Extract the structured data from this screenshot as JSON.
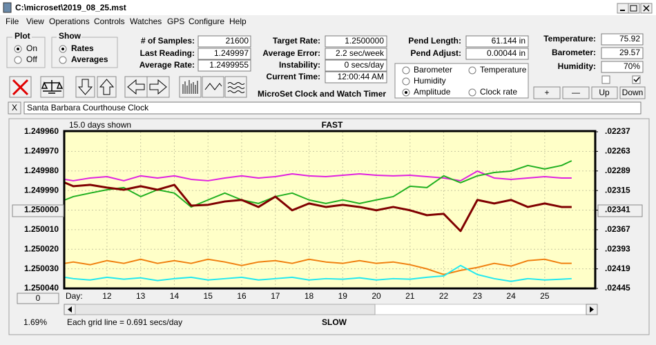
{
  "window": {
    "title": "C:\\microset\\2019_08_25.mst",
    "menu": [
      "File",
      "View",
      "Operations",
      "Controls",
      "Watches",
      "GPS",
      "Configure",
      "Help"
    ]
  },
  "plot_group": {
    "title": "Plot",
    "options": [
      "On",
      "Off"
    ]
  },
  "show_group": {
    "title": "Show",
    "options": [
      "Rates",
      "Averages"
    ]
  },
  "stats": [
    {
      "label": "# of Samples:",
      "value": "21600"
    },
    {
      "label": "Last Reading:",
      "value": "1.249997"
    },
    {
      "label": "Average Rate:",
      "value": "1.2499955"
    }
  ],
  "timing": [
    {
      "label": "Target Rate:",
      "value": "1.2500000"
    },
    {
      "label": "Average Error:",
      "value": "2.2 sec/week"
    },
    {
      "label": "Instability:",
      "value": "0 secs/day"
    },
    {
      "label": "Current Time:",
      "value": "12:00:44 AM"
    }
  ],
  "app_name": "MicroSet Clock and Watch Timer",
  "pendulum": [
    {
      "label": "Pend Length:",
      "value": "61.144 in"
    },
    {
      "label": "Pend Adjust:",
      "value": "0.00044 in"
    }
  ],
  "environment": [
    {
      "label": "Temperature:",
      "value": "75.92"
    },
    {
      "label": "Barometer:",
      "value": "29.57"
    },
    {
      "label": "Humidity:",
      "value": "70%"
    }
  ],
  "buttons": [
    "+",
    "—",
    "Up",
    "Down"
  ],
  "close_label": "X",
  "clock_name": "Santa Barbara Courthouse Clock",
  "chart_data": {
    "type": "line",
    "top_label": "FAST",
    "bottom_label": "SLOW",
    "span_label": "15.0 days shown",
    "grid_note": "Each grid line = 0.691 secs/day",
    "x_label": "Day:",
    "zoom_label": "1.69%",
    "offset_button": "0",
    "x": [
      10.75,
      11,
      11.5,
      12,
      12.5,
      13,
      13.5,
      14,
      14.5,
      15,
      15.5,
      16,
      16.5,
      17,
      17.5,
      18,
      18.5,
      19,
      19.5,
      20,
      20.5,
      21,
      21.5,
      22,
      22.5,
      23,
      23.5,
      24,
      24.5,
      25,
      25.5,
      25.8
    ],
    "xlim": [
      10.73,
      26.5
    ],
    "xticks": [
      12,
      13,
      14,
      15,
      16,
      17,
      18,
      19,
      20,
      21,
      22,
      23,
      24,
      25
    ],
    "ylim": [
      1.24996,
      1.25004
    ],
    "y_reversed": true,
    "yticks": [
      {
        "value": 1.24996,
        "label": "1.249960"
      },
      {
        "value": 1.24997,
        "label": "1.249970"
      },
      {
        "value": 1.24998,
        "label": "1.249980"
      },
      {
        "value": 1.24999,
        "label": "1.249990"
      },
      {
        "value": 1.25,
        "label": "1.250000"
      },
      {
        "value": 1.25001,
        "label": "1.250010"
      },
      {
        "value": 1.25002,
        "label": "1.250020"
      },
      {
        "value": 1.25003,
        "label": "1.250030"
      },
      {
        "value": 1.25004,
        "label": "1.250040"
      }
    ],
    "y2lim": [
      0.02237,
      0.02445
    ],
    "y2ticks": [
      {
        "value": 0.02237,
        "label": ".02237"
      },
      {
        "value": 0.02263,
        "label": ".02263"
      },
      {
        "value": 0.02289,
        "label": ".02289"
      },
      {
        "value": 0.02315,
        "label": ".02315"
      },
      {
        "value": 0.02341,
        "label": ".02341"
      },
      {
        "value": 0.02367,
        "label": ".02367"
      },
      {
        "value": 0.02393,
        "label": ".02393"
      },
      {
        "value": 0.02419,
        "label": ".02419"
      },
      {
        "value": 0.02445,
        "label": ".02445"
      }
    ],
    "grid": true,
    "series": [
      {
        "name": "Barometer",
        "color": "#f08010",
        "width": 2,
        "values": [
          1.2500272,
          1.2500265,
          1.2500279,
          1.2500258,
          1.2500272,
          1.2500251,
          1.2500272,
          1.2500258,
          1.2500272,
          1.2500251,
          1.2500265,
          1.2500283,
          1.2500265,
          1.2500258,
          1.2500272,
          1.2500251,
          1.2500265,
          1.2500272,
          1.2500258,
          1.2500272,
          1.2500265,
          1.2500279,
          1.25003,
          1.2500329,
          1.2500308,
          1.2500293,
          1.2500272,
          1.2500286,
          1.2500258,
          1.2500251,
          1.2500272,
          1.2500272
        ]
      },
      {
        "name": "Amplitude",
        "color": "#20e8f0",
        "width": 2,
        "values": [
          1.2500343,
          1.250035,
          1.2500357,
          1.2500343,
          1.2500353,
          1.2500346,
          1.250036,
          1.250035,
          1.2500343,
          1.2500357,
          1.250035,
          1.2500343,
          1.2500357,
          1.250035,
          1.2500343,
          1.2500357,
          1.250035,
          1.2500353,
          1.2500346,
          1.2500357,
          1.250035,
          1.2500353,
          1.2500343,
          1.2500336,
          1.2500283,
          1.2500329,
          1.250035,
          1.2500364,
          1.250035,
          1.2500357,
          1.2500353,
          1.250035
        ]
      },
      {
        "name": "Humidity",
        "color": "#e020e0",
        "width": 2,
        "values": [
          1.2499843,
          1.249985,
          1.2499836,
          1.2499829,
          1.249985,
          1.2499825,
          1.2499836,
          1.2499825,
          1.2499843,
          1.249985,
          1.2499836,
          1.2499825,
          1.2499836,
          1.2499829,
          1.2499815,
          1.2499825,
          1.2499829,
          1.2499822,
          1.2499815,
          1.2499822,
          1.2499825,
          1.2499822,
          1.2499829,
          1.2499836,
          1.249985,
          1.2499801,
          1.2499836,
          1.2499843,
          1.2499836,
          1.2499829,
          1.2499836,
          1.2499836
        ]
      },
      {
        "name": "Temperature",
        "color": "#20b020",
        "width": 2,
        "values": [
          1.2499948,
          1.2499931,
          1.2499913,
          1.2499896,
          1.2499885,
          1.2499931,
          1.2499896,
          1.2499913,
          1.2499984,
          1.2499948,
          1.2499913,
          1.2499948,
          1.2499966,
          1.2499931,
          1.2499913,
          1.2499948,
          1.2499966,
          1.2499948,
          1.2499966,
          1.2499948,
          1.2499931,
          1.2499878,
          1.2499885,
          1.2499825,
          1.249986,
          1.2499825,
          1.2499808,
          1.2499801,
          1.2499772,
          1.249979,
          1.2499772,
          1.2499748
        ]
      },
      {
        "name": "Clock rate",
        "color": "#800000",
        "width": 3,
        "values": [
          1.249986,
          1.2499878,
          1.2499871,
          1.2499885,
          1.2499896,
          1.2499878,
          1.2499896,
          1.2499871,
          1.2499977,
          1.2499973,
          1.2499956,
          1.2499948,
          1.2499984,
          1.2499931,
          1.2500001,
          1.2499966,
          1.2499984,
          1.2499973,
          1.2499984,
          1.2500001,
          1.2499984,
          1.2500001,
          1.2500026,
          1.2500019,
          1.2500107,
          1.2499948,
          1.2499966,
          1.2499948,
          1.2499984,
          1.2499966,
          1.2499984,
          1.2499984
        ]
      }
    ]
  }
}
